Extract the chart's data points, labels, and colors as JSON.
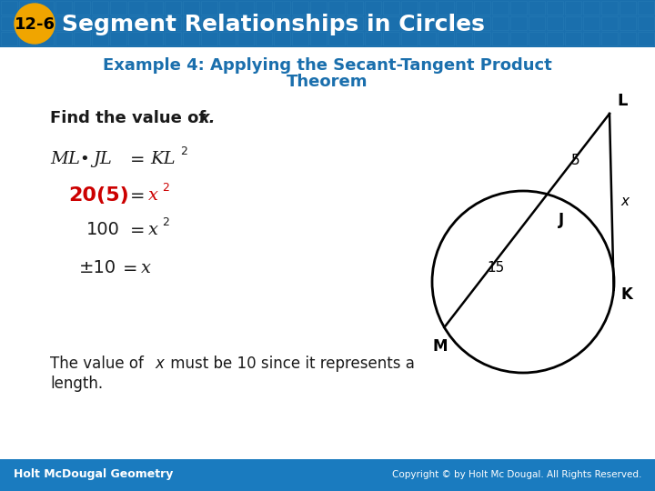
{
  "title_badge": "12-6",
  "title_text": "Segment Relationships in Circles",
  "title_bg_color": "#1a6fad",
  "title_badge_color": "#f0a500",
  "subtitle_line1": "Example 4: Applying the Secant-Tangent Product",
  "subtitle_line2": "Theorem",
  "subtitle_color": "#1a6fad",
  "body_bg": "#ffffff",
  "footer_left": "Holt McDougal Geometry",
  "footer_right": "Copyright © by Holt Mc Dougal. All Rights Reserved.",
  "footer_bg": "#1a7bbf",
  "red_color": "#cc0000",
  "black_color": "#1a1a1a",
  "grid_color": "#3a8fc4",
  "fig_width": 7.2,
  "fig_height": 5.4,
  "dpi": 100
}
